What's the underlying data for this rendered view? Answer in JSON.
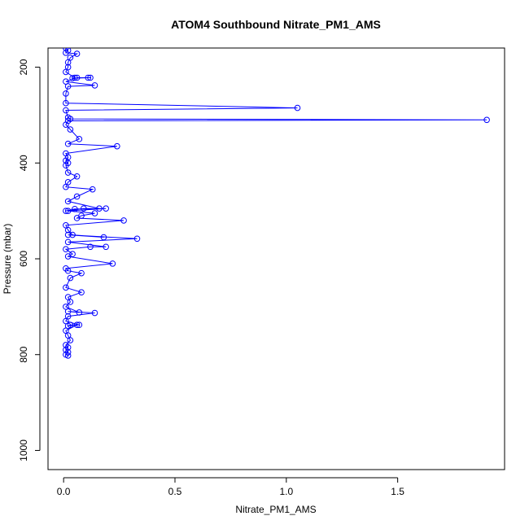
{
  "chart_data": {
    "type": "scatter",
    "title": "ATOM4 Southbound Nitrate_PM1_AMS",
    "xlabel": "Nitrate_PM1_AMS",
    "ylabel": "Pressure (mbar)",
    "xlim": [
      -0.07,
      1.98
    ],
    "ylim": [
      1040,
      160
    ],
    "y_inverted": true,
    "x_ticks": [
      0.0,
      0.5,
      1.0,
      1.5
    ],
    "x_tick_labels": [
      "0.0",
      "0.5",
      "1.0",
      "1.5"
    ],
    "y_ticks": [
      200,
      400,
      600,
      800,
      1000
    ],
    "y_tick_labels": [
      "200",
      "400",
      "600",
      "800",
      "1000"
    ],
    "grid": false,
    "legend": "none",
    "series_color": "#0000ff",
    "marker": "open-circle",
    "connect_points": true,
    "x": [
      0.01,
      0.02,
      0.01,
      0.06,
      0.03,
      0.02,
      0.02,
      0.01,
      0.05,
      0.04,
      0.11,
      0.12,
      0.06,
      0.01,
      0.14,
      0.02,
      0.01,
      0.01,
      1.05,
      0.01,
      0.02,
      0.03,
      1.9,
      0.02,
      0.01,
      0.03,
      0.07,
      0.02,
      0.24,
      0.01,
      0.02,
      0.01,
      0.02,
      0.01,
      0.02,
      0.06,
      0.02,
      0.01,
      0.13,
      0.06,
      0.02,
      0.16,
      0.09,
      0.01,
      0.05,
      0.19,
      0.02,
      0.14,
      0.08,
      0.06,
      0.27,
      0.01,
      0.02,
      0.04,
      0.18,
      0.02,
      0.33,
      0.02,
      0.19,
      0.12,
      0.01,
      0.04,
      0.02,
      0.22,
      0.01,
      0.02,
      0.08,
      0.03,
      0.01,
      0.08,
      0.02,
      0.03,
      0.01,
      0.07,
      0.02,
      0.14,
      0.02,
      0.01,
      0.07,
      0.03,
      0.02,
      0.06,
      0.01,
      0.02,
      0.03,
      0.01,
      0.02,
      0.01,
      0.02,
      0.01,
      0.02
    ],
    "y": [
      160,
      165,
      170,
      172,
      180,
      190,
      200,
      210,
      222,
      223,
      222,
      222,
      222,
      230,
      238,
      240,
      255,
      275,
      285,
      290,
      305,
      308,
      310,
      312,
      320,
      330,
      350,
      360,
      365,
      380,
      388,
      395,
      400,
      405,
      420,
      428,
      440,
      450,
      455,
      470,
      480,
      495,
      495,
      500,
      496,
      495,
      500,
      505,
      510,
      515,
      520,
      530,
      540,
      550,
      555,
      550,
      558,
      565,
      575,
      575,
      580,
      590,
      595,
      610,
      620,
      625,
      630,
      640,
      660,
      670,
      680,
      690,
      700,
      712,
      710,
      713,
      720,
      730,
      738,
      738,
      740,
      738,
      750,
      760,
      770,
      780,
      785,
      790,
      795,
      800,
      802
    ]
  }
}
